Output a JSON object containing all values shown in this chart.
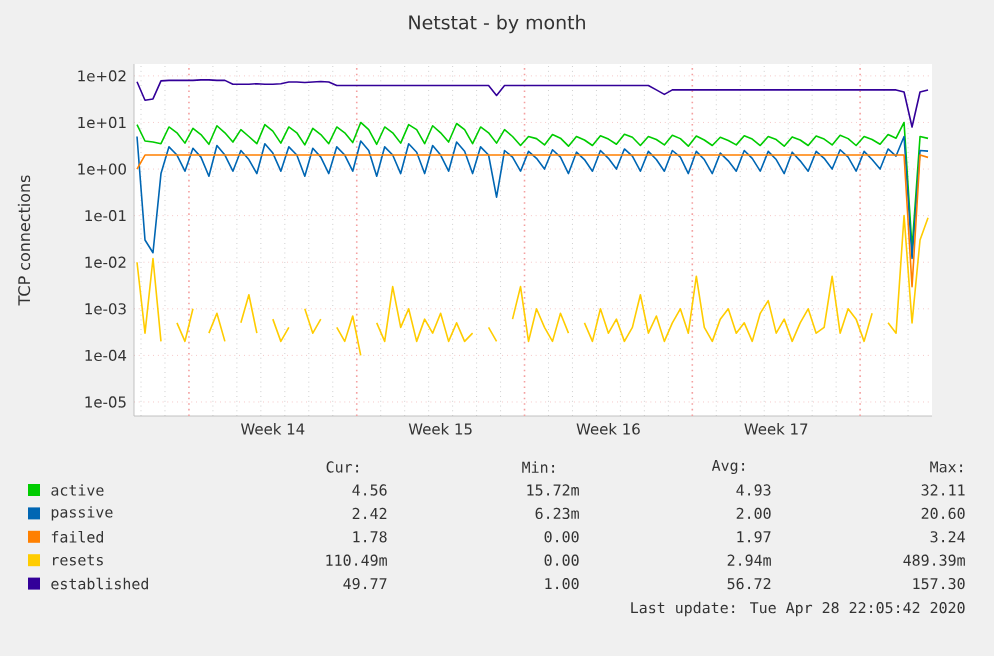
{
  "chart_data": {
    "type": "line",
    "title": "Netstat - by month",
    "ylabel": "TCP connections",
    "log": "y",
    "grid": true,
    "legend": "bottom",
    "marker": "none",
    "line_style": "solid",
    "xlim": [
      "2020-03-27T17:00",
      "2020-04-30T00:00"
    ],
    "ylim": [
      5e-06,
      180
    ],
    "yticks": [
      {
        "value": 1e-05,
        "label": "1e-05"
      },
      {
        "value": 0.0001,
        "label": "1e-04"
      },
      {
        "value": 0.001,
        "label": "1e-03"
      },
      {
        "value": 0.01,
        "label": "1e-02"
      },
      {
        "value": 0.1,
        "label": "1e-01"
      },
      {
        "value": 1,
        "label": "1e+00"
      },
      {
        "value": 10,
        "label": "1e+01"
      },
      {
        "value": 100,
        "label": "1e+02"
      }
    ],
    "xticks": [
      {
        "value": "2020-03-28",
        "label": null
      },
      {
        "value": "2020-03-29",
        "label": null
      },
      {
        "value": "2020-03-31",
        "label": null
      },
      {
        "value": "2020-04-01",
        "label": null
      },
      {
        "value": "2020-04-02",
        "label": null
      },
      {
        "value": "2020-04-03",
        "label": null
      },
      {
        "value": "2020-04-04",
        "label": null
      },
      {
        "value": "2020-04-05",
        "label": null
      },
      {
        "value": "2020-04-07",
        "label": null
      },
      {
        "value": "2020-04-08",
        "label": null
      },
      {
        "value": "2020-04-09",
        "label": null
      },
      {
        "value": "2020-04-10",
        "label": null
      },
      {
        "value": "2020-04-11",
        "label": null
      },
      {
        "value": "2020-04-12",
        "label": null
      },
      {
        "value": "2020-04-14",
        "label": null
      },
      {
        "value": "2020-04-15",
        "label": null
      },
      {
        "value": "2020-04-16",
        "label": null
      },
      {
        "value": "2020-04-17",
        "label": null
      },
      {
        "value": "2020-04-18",
        "label": null
      },
      {
        "value": "2020-04-19",
        "label": null
      },
      {
        "value": "2020-04-21",
        "label": null
      },
      {
        "value": "2020-04-22",
        "label": null
      },
      {
        "value": "2020-04-23",
        "label": null
      },
      {
        "value": "2020-04-24",
        "label": null
      },
      {
        "value": "2020-04-25",
        "label": null
      },
      {
        "value": "2020-04-26",
        "label": null
      },
      {
        "value": "2020-04-28",
        "label": null
      },
      {
        "value": "2020-04-29",
        "label": null
      },
      {
        "value": "2020-04-02T12:00",
        "label": "Week 14"
      },
      {
        "value": "2020-04-09T12:00",
        "label": "Week 15"
      },
      {
        "value": "2020-04-16T12:00",
        "label": "Week 16"
      },
      {
        "value": "2020-04-23T12:00",
        "label": "Week 17"
      }
    ],
    "ref_lines": [
      {
        "axis": "x",
        "value": "2020-03-30",
        "color": "#f4a0a0",
        "line_style": "dotted"
      },
      {
        "axis": "x",
        "value": "2020-04-06",
        "color": "#f4a0a0",
        "line_style": "dotted"
      },
      {
        "axis": "x",
        "value": "2020-04-13",
        "color": "#f4a0a0",
        "line_style": "dotted"
      },
      {
        "axis": "x",
        "value": "2020-04-20",
        "color": "#f4a0a0",
        "line_style": "dotted"
      },
      {
        "axis": "x",
        "value": "2020-04-27",
        "color": "#f4a0a0",
        "line_style": "dotted"
      }
    ],
    "x": [
      "2020-03-27T20:00",
      "2020-03-28T04:00",
      "2020-03-28T12:00",
      "2020-03-28T20:00",
      "2020-03-29T04:00",
      "2020-03-29T12:00",
      "2020-03-29T20:00",
      "2020-03-30T04:00",
      "2020-03-30T12:00",
      "2020-03-30T20:00",
      "2020-03-31T04:00",
      "2020-03-31T12:00",
      "2020-03-31T20:00",
      "2020-04-01T04:00",
      "2020-04-01T12:00",
      "2020-04-01T20:00",
      "2020-04-02T04:00",
      "2020-04-02T12:00",
      "2020-04-02T20:00",
      "2020-04-03T04:00",
      "2020-04-03T12:00",
      "2020-04-03T20:00",
      "2020-04-04T04:00",
      "2020-04-04T12:00",
      "2020-04-04T20:00",
      "2020-04-05T04:00",
      "2020-04-05T12:00",
      "2020-04-05T20:00",
      "2020-04-06T04:00",
      "2020-04-06T12:00",
      "2020-04-06T20:00",
      "2020-04-07T04:00",
      "2020-04-07T12:00",
      "2020-04-07T20:00",
      "2020-04-08T04:00",
      "2020-04-08T12:00",
      "2020-04-08T20:00",
      "2020-04-09T04:00",
      "2020-04-09T12:00",
      "2020-04-09T20:00",
      "2020-04-10T04:00",
      "2020-04-10T12:00",
      "2020-04-10T20:00",
      "2020-04-11T04:00",
      "2020-04-11T12:00",
      "2020-04-11T20:00",
      "2020-04-12T04:00",
      "2020-04-12T12:00",
      "2020-04-12T20:00",
      "2020-04-13T04:00",
      "2020-04-13T12:00",
      "2020-04-13T20:00",
      "2020-04-14T04:00",
      "2020-04-14T12:00",
      "2020-04-14T20:00",
      "2020-04-15T04:00",
      "2020-04-15T12:00",
      "2020-04-15T20:00",
      "2020-04-16T04:00",
      "2020-04-16T12:00",
      "2020-04-16T20:00",
      "2020-04-17T04:00",
      "2020-04-17T12:00",
      "2020-04-17T20:00",
      "2020-04-18T04:00",
      "2020-04-18T12:00",
      "2020-04-18T20:00",
      "2020-04-19T04:00",
      "2020-04-19T12:00",
      "2020-04-19T20:00",
      "2020-04-20T04:00",
      "2020-04-20T12:00",
      "2020-04-20T20:00",
      "2020-04-21T04:00",
      "2020-04-21T12:00",
      "2020-04-21T20:00",
      "2020-04-22T04:00",
      "2020-04-22T12:00",
      "2020-04-22T20:00",
      "2020-04-23T04:00",
      "2020-04-23T12:00",
      "2020-04-23T20:00",
      "2020-04-24T04:00",
      "2020-04-24T12:00",
      "2020-04-24T20:00",
      "2020-04-25T04:00",
      "2020-04-25T12:00",
      "2020-04-25T20:00",
      "2020-04-26T04:00",
      "2020-04-26T12:00",
      "2020-04-26T20:00",
      "2020-04-27T04:00",
      "2020-04-27T12:00",
      "2020-04-27T20:00",
      "2020-04-28T04:00",
      "2020-04-28T12:00",
      "2020-04-28T20:00",
      "2020-04-29T04:00",
      "2020-04-29T12:00",
      "2020-04-29T20:00"
    ],
    "series": [
      {
        "name": "active",
        "color": "#00cc00",
        "values": [
          9,
          4,
          3.8,
          3.5,
          8,
          6,
          3.6,
          7.5,
          5.5,
          3.4,
          8.5,
          6,
          3.8,
          7,
          5,
          3.5,
          9,
          6.5,
          3.6,
          8,
          6,
          3.3,
          7.5,
          5.5,
          3.5,
          8,
          6,
          3.7,
          10,
          7,
          3.4,
          8,
          6,
          3.6,
          9,
          7,
          3.5,
          8.5,
          6,
          3.8,
          9.5,
          7,
          3.5,
          8,
          6,
          3.6,
          7,
          5,
          3.2,
          5,
          4.5,
          3.3,
          5.5,
          4.6,
          3.1,
          5,
          4.2,
          3.2,
          5.2,
          4.4,
          3.4,
          5.6,
          4.8,
          3.2,
          5,
          4.3,
          3.3,
          5.3,
          4.5,
          3.1,
          5.1,
          4.2,
          3.2,
          4.8,
          4.1,
          3.3,
          5.2,
          4.4,
          3.2,
          5,
          4.3,
          3.1,
          4.9,
          4.2,
          3.2,
          5.1,
          4.4,
          3.3,
          5.3,
          4.5,
          3.2,
          5,
          4.3,
          3.4,
          5.5,
          4.6,
          10,
          0.02,
          5,
          4.56
        ]
      },
      {
        "name": "passive",
        "color": "#0066b3",
        "values": [
          5,
          0.03,
          0.016,
          0.8,
          3,
          2,
          0.9,
          2.8,
          1.8,
          0.7,
          3.2,
          2,
          0.9,
          2.5,
          1.6,
          0.8,
          3.5,
          2.2,
          0.9,
          3,
          2,
          0.7,
          2.8,
          1.8,
          0.8,
          3,
          2,
          0.9,
          4,
          2.5,
          0.7,
          3,
          2,
          0.8,
          3.5,
          2.3,
          0.8,
          3.2,
          2,
          0.9,
          3.8,
          2.4,
          0.8,
          3,
          2,
          0.25,
          2.5,
          1.8,
          0.9,
          2.4,
          1.7,
          1,
          2.6,
          1.8,
          0.8,
          2.3,
          1.6,
          0.9,
          2.5,
          1.7,
          1,
          2.7,
          1.9,
          0.9,
          2.4,
          1.6,
          0.9,
          2.5,
          1.8,
          0.8,
          2.4,
          1.6,
          0.8,
          2.2,
          1.5,
          0.9,
          2.5,
          1.7,
          0.9,
          2.4,
          1.6,
          0.8,
          2.3,
          1.5,
          0.9,
          2.4,
          1.7,
          1,
          2.6,
          1.8,
          0.9,
          2.4,
          1.6,
          1,
          2.7,
          1.9,
          5,
          0.012,
          2.5,
          2.42
        ]
      },
      {
        "name": "failed",
        "color": "#ff8000",
        "values": [
          1,
          2,
          2,
          2,
          2,
          2,
          2,
          2,
          2,
          2,
          2,
          2,
          2,
          2,
          2,
          2,
          2,
          2,
          2,
          2,
          2,
          2,
          2,
          2,
          2,
          2,
          2,
          2,
          2,
          2,
          2,
          2,
          2,
          2,
          2,
          2,
          2,
          2,
          2,
          2,
          2,
          2,
          2,
          2,
          2,
          2,
          2,
          2,
          2,
          2,
          2,
          2,
          2,
          2,
          2,
          2,
          2,
          2,
          2,
          2,
          2,
          2,
          2,
          2,
          2,
          2,
          2,
          2,
          2,
          2,
          2,
          2,
          2,
          2,
          2,
          2,
          2,
          2,
          2,
          2,
          2,
          2,
          2,
          2,
          2,
          2,
          2,
          2,
          2,
          2,
          2,
          2,
          2,
          2,
          2,
          2,
          2,
          0.003,
          2,
          1.78
        ]
      },
      {
        "name": "resets",
        "color": "#ffcc00",
        "values": [
          0.01,
          0.0003,
          0.012,
          0.0002,
          null,
          0.0005,
          0.0002,
          0.001,
          null,
          0.0003,
          0.0008,
          0.0002,
          null,
          0.0005,
          0.002,
          0.0003,
          null,
          0.0006,
          0.0002,
          0.0004,
          null,
          0.001,
          0.0003,
          0.0006,
          null,
          0.0004,
          0.0002,
          0.0007,
          0.0001,
          null,
          0.0005,
          0.0002,
          0.003,
          0.0004,
          0.001,
          0.0002,
          0.0006,
          0.0003,
          0.0008,
          0.0002,
          0.0005,
          0.0002,
          0.0003,
          null,
          0.0004,
          0.0002,
          null,
          0.0006,
          0.003,
          0.0002,
          0.001,
          0.0004,
          0.0002,
          0.0008,
          0.0003,
          null,
          0.0005,
          0.0002,
          0.001,
          0.0003,
          0.0006,
          0.0002,
          0.0004,
          0.002,
          0.0003,
          0.0007,
          0.0002,
          0.0005,
          0.001,
          0.0003,
          0.005,
          0.0004,
          0.0002,
          0.0006,
          0.001,
          0.0003,
          0.0005,
          0.0002,
          0.0008,
          0.0015,
          0.0003,
          0.0006,
          0.0002,
          0.0005,
          0.001,
          0.0003,
          0.0004,
          0.005,
          0.0003,
          0.001,
          0.0006,
          0.0002,
          0.0008,
          null,
          0.0005,
          0.0003,
          0.1,
          0.0005,
          0.03,
          0.09
        ]
      },
      {
        "name": "established",
        "color": "#330099",
        "values": [
          75,
          30,
          32,
          78,
          80,
          80,
          80,
          80,
          82,
          82,
          80,
          80,
          66,
          66,
          66,
          68,
          66,
          66,
          68,
          74,
          74,
          72,
          74,
          76,
          74,
          62,
          62,
          62,
          62,
          62,
          62,
          62,
          62,
          62,
          62,
          62,
          62,
          62,
          62,
          62,
          62,
          62,
          62,
          62,
          62,
          38,
          62,
          62,
          62,
          62,
          62,
          62,
          62,
          62,
          62,
          62,
          62,
          62,
          62,
          62,
          62,
          62,
          62,
          62,
          62,
          50,
          40,
          50,
          50,
          50,
          50,
          50,
          50,
          50,
          50,
          50,
          50,
          50,
          50,
          50,
          50,
          50,
          50,
          50,
          50,
          50,
          50,
          50,
          50,
          50,
          50,
          50,
          50,
          50,
          50,
          50,
          45,
          8,
          45,
          49.77
        ]
      }
    ],
    "annotations": [
      "Cur:",
      "Min:",
      "Avg:",
      "Max:",
      "4.56",
      "15.72m",
      "4.93",
      "32.11",
      "2.42",
      "6.23m",
      "2.00",
      "20.60",
      "1.78",
      "0.00",
      "1.97",
      "3.24",
      "110.49m",
      "0.00",
      "2.94m",
      "489.39m",
      "49.77",
      "1.00",
      "56.72",
      "157.30",
      "Last update: Tue Apr 28 22:05:42 2020"
    ]
  }
}
